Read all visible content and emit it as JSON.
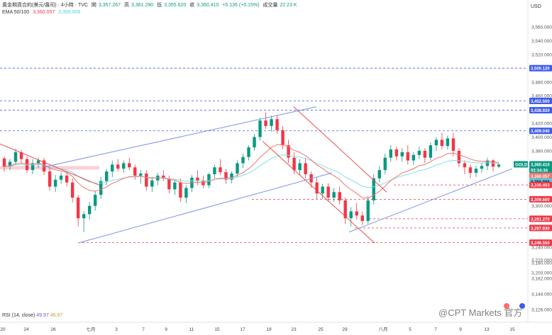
{
  "header": {
    "symbol_line": "黃金期貨合約(美元/盎司) · 4小時 · TVC",
    "open_label": "開",
    "open": "3,357.267",
    "high_label": "高",
    "high": "3,361.290",
    "low_label": "低",
    "low": "3,355.620",
    "close_label": "收",
    "close": "3,360.410",
    "change": "+5.135 (+0.15%)",
    "volume_label": "成交量",
    "volume": "22.23 K",
    "ema_label": "EMA 50/100",
    "ema50": "3,360.057",
    "ema100": "3,356.006"
  },
  "rsi": {
    "label": "RSI (14, close)",
    "value1": "49.97",
    "value2": "46.97"
  },
  "currency": "USD",
  "watermark": "@CPT Markets 官方",
  "colors": {
    "up": "#089981",
    "down": "#f23645",
    "ema50": "#f4736e",
    "ema100": "#7fe0e8",
    "channel": "#7b93e8",
    "down_channel": "#ef4a4a",
    "resistance": "#3d5af1",
    "support": "#f23645"
  },
  "chart_data": {
    "type": "candlestick",
    "y_axis_ticks": [
      "3,560.000",
      "3,540.000",
      "3,520.000",
      "3,480.000",
      "3,460.000",
      "3,420.000",
      "3,400.000",
      "3,380.000",
      "3,300.000",
      "3,240.000",
      "3,220.000",
      "3,200.000",
      "3,180.000",
      "3,162.000",
      "3,144.000",
      "3,126.000"
    ],
    "x_axis_ticks": [
      "20",
      "24",
      "26",
      "七月",
      "3",
      "7",
      "9",
      "11",
      "15",
      "17",
      "19",
      "23",
      "25",
      "29",
      "八月",
      "5",
      "7",
      "9",
      "13",
      "15"
    ],
    "price_tags": [
      {
        "label": "3,500.120",
        "value": 3500.12,
        "color": "#3d5af1"
      },
      {
        "label": "3,452.500",
        "value": 3452.5,
        "color": "#3d5af1"
      },
      {
        "label": "3,438.920",
        "value": 3438.92,
        "color": "#3d5af1"
      },
      {
        "label": "3,409.040",
        "value": 3409.04,
        "color": "#3d5af1"
      },
      {
        "label": "GOLD",
        "value": 3360.41,
        "color": "#089981"
      },
      {
        "label": "3,360.410",
        "value": 3360.41,
        "color": "#089981"
      },
      {
        "label": "02:34:34",
        "value": 3360.41,
        "color": "#089981"
      },
      {
        "label": "3,360.057",
        "value": 3360.057,
        "color": "#f4736e"
      },
      {
        "label": "3,356.006",
        "value": 3356.006,
        "color": "#4dd0e1"
      },
      {
        "label": "3,330.403",
        "value": 3330.403,
        "color": "#f23645"
      },
      {
        "label": "3,309.600",
        "value": 3309.6,
        "color": "#f23645"
      },
      {
        "label": "3,281.270",
        "value": 3281.27,
        "color": "#f23645"
      },
      {
        "label": "3,267.930",
        "value": 3267.93,
        "color": "#f23645"
      },
      {
        "label": "3,246.550",
        "value": 3246.55,
        "color": "#f23645"
      }
    ],
    "resistance_levels": [
      3500.12,
      3452.5,
      3438.92,
      3409.04
    ],
    "support_levels": [
      3330.403,
      3309.6,
      3281.27,
      3267.93,
      3246.55
    ],
    "candles": [
      [
        3369,
        3372,
        3350,
        3357
      ],
      [
        3357,
        3368,
        3352,
        3364
      ],
      [
        3364,
        3383,
        3360,
        3378
      ],
      [
        3378,
        3381,
        3362,
        3368
      ],
      [
        3368,
        3372,
        3348,
        3352
      ],
      [
        3352,
        3368,
        3346,
        3362
      ],
      [
        3362,
        3370,
        3355,
        3366
      ],
      [
        3366,
        3370,
        3345,
        3350
      ],
      [
        3350,
        3357,
        3322,
        3328
      ],
      [
        3328,
        3345,
        3320,
        3338
      ],
      [
        3338,
        3349,
        3332,
        3344
      ],
      [
        3344,
        3350,
        3328,
        3334
      ],
      [
        3334,
        3340,
        3305,
        3312
      ],
      [
        3312,
        3316,
        3270,
        3282
      ],
      [
        3282,
        3292,
        3262,
        3288
      ],
      [
        3288,
        3306,
        3280,
        3300
      ],
      [
        3300,
        3322,
        3293,
        3316
      ],
      [
        3316,
        3342,
        3310,
        3336
      ],
      [
        3336,
        3354,
        3330,
        3350
      ],
      [
        3350,
        3366,
        3342,
        3360
      ],
      [
        3360,
        3368,
        3350,
        3354
      ],
      [
        3354,
        3366,
        3348,
        3362
      ],
      [
        3362,
        3370,
        3352,
        3356
      ],
      [
        3356,
        3360,
        3338,
        3344
      ],
      [
        3344,
        3352,
        3332,
        3347
      ],
      [
        3347,
        3352,
        3322,
        3328
      ],
      [
        3328,
        3342,
        3320,
        3337
      ],
      [
        3337,
        3348,
        3330,
        3344
      ],
      [
        3344,
        3352,
        3336,
        3340
      ],
      [
        3340,
        3344,
        3318,
        3324
      ],
      [
        3324,
        3338,
        3316,
        3334
      ],
      [
        3334,
        3340,
        3306,
        3312
      ],
      [
        3312,
        3330,
        3304,
        3326
      ],
      [
        3326,
        3345,
        3320,
        3341
      ],
      [
        3341,
        3352,
        3330,
        3337
      ],
      [
        3337,
        3344,
        3326,
        3330
      ],
      [
        3330,
        3348,
        3326,
        3346
      ],
      [
        3346,
        3360,
        3340,
        3356
      ],
      [
        3356,
        3368,
        3345,
        3349
      ],
      [
        3349,
        3354,
        3332,
        3338
      ],
      [
        3338,
        3350,
        3333,
        3347
      ],
      [
        3347,
        3366,
        3342,
        3362
      ],
      [
        3362,
        3376,
        3355,
        3371
      ],
      [
        3371,
        3388,
        3366,
        3385
      ],
      [
        3385,
        3404,
        3380,
        3400
      ],
      [
        3400,
        3428,
        3395,
        3424
      ],
      [
        3424,
        3436,
        3412,
        3416
      ],
      [
        3416,
        3431,
        3408,
        3426
      ],
      [
        3426,
        3432,
        3405,
        3410
      ],
      [
        3410,
        3416,
        3382,
        3388
      ],
      [
        3388,
        3396,
        3362,
        3370
      ],
      [
        3370,
        3378,
        3346,
        3352
      ],
      [
        3352,
        3368,
        3344,
        3362
      ],
      [
        3362,
        3370,
        3340,
        3346
      ],
      [
        3346,
        3350,
        3326,
        3334
      ],
      [
        3334,
        3342,
        3310,
        3318
      ],
      [
        3318,
        3332,
        3310,
        3328
      ],
      [
        3328,
        3333,
        3306,
        3312
      ],
      [
        3312,
        3326,
        3306,
        3320
      ],
      [
        3320,
        3328,
        3302,
        3308
      ],
      [
        3308,
        3312,
        3274,
        3282
      ],
      [
        3282,
        3298,
        3270,
        3292
      ],
      [
        3292,
        3304,
        3280,
        3286
      ],
      [
        3286,
        3292,
        3272,
        3278
      ],
      [
        3278,
        3314,
        3274,
        3308
      ],
      [
        3308,
        3346,
        3302,
        3340
      ],
      [
        3340,
        3358,
        3334,
        3352
      ],
      [
        3352,
        3376,
        3346,
        3370
      ],
      [
        3370,
        3388,
        3364,
        3382
      ],
      [
        3382,
        3386,
        3366,
        3372
      ],
      [
        3372,
        3384,
        3364,
        3378
      ],
      [
        3378,
        3388,
        3360,
        3366
      ],
      [
        3366,
        3378,
        3360,
        3374
      ],
      [
        3374,
        3386,
        3368,
        3380
      ],
      [
        3380,
        3384,
        3362,
        3370
      ],
      [
        3370,
        3392,
        3366,
        3388
      ],
      [
        3388,
        3400,
        3380,
        3396
      ],
      [
        3396,
        3406,
        3382,
        3387
      ],
      [
        3387,
        3402,
        3382,
        3398
      ],
      [
        3398,
        3406,
        3372,
        3380
      ],
      [
        3380,
        3384,
        3356,
        3362
      ],
      [
        3362,
        3366,
        3346,
        3356
      ],
      [
        3356,
        3360,
        3340,
        3348
      ],
      [
        3348,
        3358,
        3342,
        3354
      ],
      [
        3354,
        3362,
        3348,
        3358
      ],
      [
        3358,
        3370,
        3352,
        3366
      ],
      [
        3366,
        3368,
        3350,
        3357
      ],
      [
        3357,
        3362,
        3355,
        3360
      ]
    ]
  }
}
